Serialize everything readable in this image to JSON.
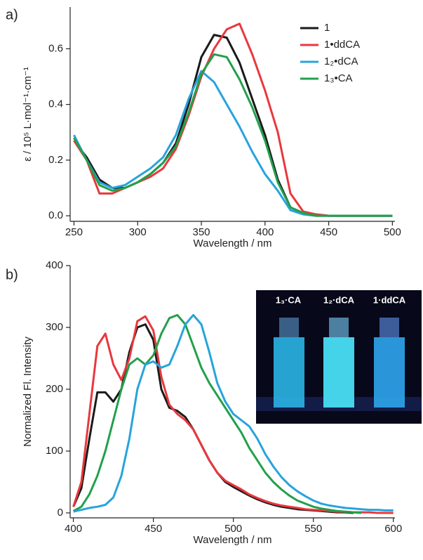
{
  "chart_data": [
    {
      "type": "line",
      "panel_label": "a)",
      "xlabel": "Wavelength / nm",
      "ylabel": "ε / 10⁵ L·mol⁻¹·cm⁻¹",
      "x": [
        250,
        260,
        270,
        280,
        290,
        300,
        310,
        320,
        330,
        340,
        350,
        360,
        370,
        380,
        390,
        400,
        410,
        420,
        430,
        440,
        450,
        460,
        470,
        480,
        490,
        500
      ],
      "series": [
        {
          "name": "1",
          "color": "#1a1a1a",
          "values": [
            0.27,
            0.21,
            0.13,
            0.1,
            0.1,
            0.12,
            0.15,
            0.19,
            0.26,
            0.4,
            0.57,
            0.65,
            0.64,
            0.55,
            0.42,
            0.29,
            0.13,
            0.03,
            0.01,
            0.005,
            0,
            0,
            0,
            0,
            0,
            0
          ]
        },
        {
          "name": "1•ddCA",
          "color": "#e8383d",
          "values": [
            0.27,
            0.2,
            0.08,
            0.08,
            0.1,
            0.12,
            0.14,
            0.17,
            0.24,
            0.36,
            0.5,
            0.6,
            0.67,
            0.69,
            0.58,
            0.45,
            0.3,
            0.08,
            0.015,
            0.005,
            0,
            0,
            0,
            0,
            0,
            0
          ]
        },
        {
          "name": "1₂•dCA",
          "color": "#27a3dc",
          "values": [
            0.29,
            0.2,
            0.12,
            0.1,
            0.11,
            0.14,
            0.17,
            0.21,
            0.29,
            0.42,
            0.52,
            0.48,
            0.4,
            0.32,
            0.23,
            0.15,
            0.09,
            0.02,
            0.005,
            0,
            0,
            0,
            0,
            0,
            0,
            0
          ]
        },
        {
          "name": "1₃•CA",
          "color": "#22a04b",
          "values": [
            0.28,
            0.2,
            0.11,
            0.09,
            0.1,
            0.12,
            0.15,
            0.19,
            0.25,
            0.37,
            0.51,
            0.58,
            0.57,
            0.49,
            0.39,
            0.27,
            0.12,
            0.03,
            0.01,
            0,
            0,
            0,
            0,
            0,
            0,
            0
          ]
        }
      ],
      "xlim": [
        247,
        502
      ],
      "ylim": [
        -0.02,
        0.75
      ],
      "xticks": [
        250,
        300,
        350,
        400,
        450,
        500
      ],
      "yticks": [
        {
          "value": 0,
          "label": "0.0"
        },
        0.2,
        0.4,
        0.6
      ]
    },
    {
      "type": "line",
      "panel_label": "b)",
      "xlabel": "Wavelength / nm",
      "ylabel": "Normalized Fl. Intensity",
      "inset_labels": [
        "1₃·CA",
        "1₂·dCA",
        "1·ddCA"
      ],
      "x": [
        400,
        405,
        410,
        415,
        420,
        425,
        430,
        435,
        440,
        445,
        450,
        455,
        460,
        465,
        470,
        475,
        480,
        485,
        490,
        495,
        500,
        505,
        510,
        515,
        520,
        525,
        530,
        535,
        540,
        545,
        550,
        555,
        560,
        565,
        570,
        575,
        580,
        585,
        590,
        595,
        600
      ],
      "series": [
        {
          "color": "#1a1a1a",
          "values": [
            10,
            40,
            120,
            195,
            195,
            180,
            200,
            260,
            300,
            305,
            280,
            200,
            170,
            165,
            155,
            135,
            110,
            85,
            65,
            50,
            42,
            35,
            28,
            22,
            17,
            13,
            10,
            8,
            6,
            5,
            4,
            3,
            2,
            1,
            1,
            0,
            null,
            null,
            null,
            null,
            null
          ]
        },
        {
          "color": "#e8383d",
          "values": [
            10,
            50,
            160,
            270,
            290,
            240,
            215,
            250,
            310,
            318,
            295,
            220,
            175,
            160,
            150,
            135,
            110,
            85,
            65,
            52,
            45,
            38,
            30,
            24,
            19,
            15,
            12,
            10,
            8,
            6,
            5,
            4,
            3,
            2,
            2,
            1,
            1,
            1,
            0,
            0,
            0
          ]
        },
        {
          "color": "#22a04b",
          "values": [
            3,
            10,
            30,
            60,
            100,
            150,
            200,
            240,
            250,
            240,
            255,
            290,
            315,
            320,
            305,
            270,
            235,
            210,
            190,
            170,
            150,
            130,
            105,
            85,
            65,
            50,
            38,
            28,
            20,
            15,
            10,
            7,
            5,
            3,
            2,
            1,
            0,
            null,
            null,
            null,
            null
          ]
        },
        {
          "color": "#27a3dc",
          "values": [
            2,
            5,
            8,
            10,
            13,
            25,
            60,
            120,
            200,
            240,
            245,
            235,
            240,
            270,
            305,
            320,
            305,
            260,
            210,
            180,
            160,
            150,
            140,
            120,
            95,
            75,
            58,
            45,
            35,
            27,
            20,
            15,
            12,
            10,
            8,
            7,
            6,
            5,
            5,
            4,
            4
          ]
        }
      ],
      "xlim": [
        398,
        601
      ],
      "ylim": [
        -8,
        400
      ],
      "xticks": [
        400,
        450,
        500,
        550,
        600
      ],
      "yticks": [
        0,
        100,
        200,
        300,
        400
      ]
    }
  ]
}
